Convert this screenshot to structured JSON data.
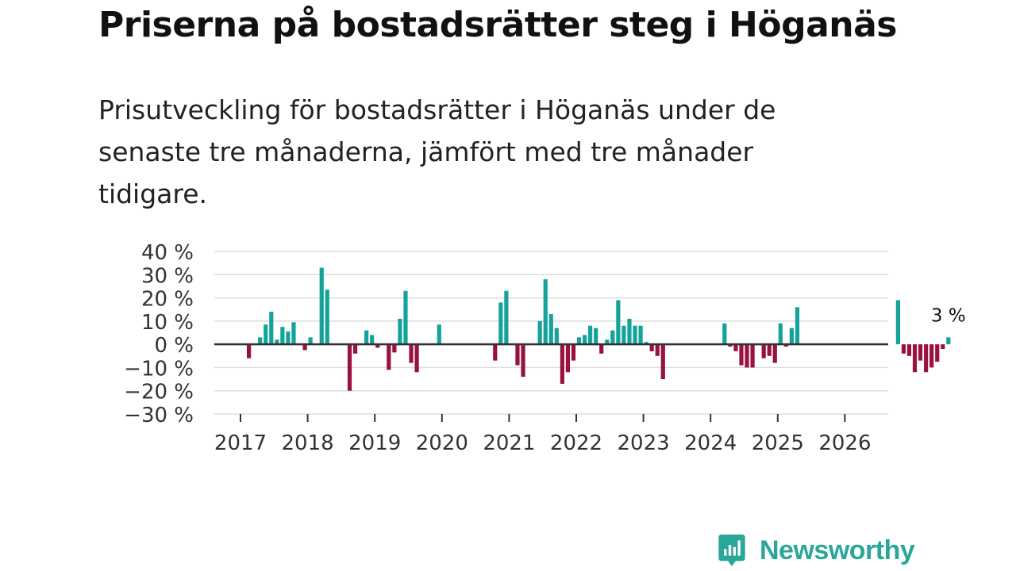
{
  "title": "Priserna på bostadsrätter steg i Höganäs",
  "subtitle": "Prisutveckling för bostadsrätter i Höganäs under de senaste tre månaderna, jämfört med tre månader tidigare.",
  "logo": {
    "text": "Newsworthy",
    "icon": "newsworthy-logo-icon"
  },
  "colors": {
    "positive": "#14a39a",
    "negative": "#99113e",
    "grid": "#dddddd",
    "zero": "#333333"
  },
  "chart_data": {
    "type": "bar",
    "title": "Priserna på bostadsrätter steg i Höganäs",
    "xlabel": "",
    "ylabel": "",
    "ylim": [
      -30,
      40
    ],
    "y_ticks": [
      40,
      30,
      20,
      10,
      0,
      -10,
      -20,
      -30
    ],
    "y_tick_labels": [
      "40 %",
      "30 %",
      "20 %",
      "10 %",
      "0 %",
      "−10 %",
      "−20 %",
      "−30 %"
    ],
    "x_ticks": [
      2017,
      2018,
      2019,
      2020,
      2021,
      2022,
      2023,
      2024,
      2025,
      2026
    ],
    "x_tick_labels": [
      "2017",
      "2018",
      "2019",
      "2020",
      "2021",
      "2022",
      "2023",
      "2024",
      "2025",
      "2026"
    ],
    "x_start": 2017,
    "bars_per_year": 12,
    "unit": "%",
    "annotation": {
      "text": "3 %",
      "target": "last"
    },
    "values": [
      null,
      -6,
      null,
      3,
      8.5,
      14,
      2,
      7.5,
      5.5,
      9.5,
      null,
      -2.5,
      3,
      null,
      33,
      23.5,
      null,
      null,
      null,
      -20,
      -4,
      null,
      6,
      4,
      -1.5,
      null,
      -11,
      -3.5,
      11,
      23,
      -8,
      -12,
      null,
      null,
      null,
      8.5,
      null,
      null,
      null,
      null,
      null,
      null,
      null,
      null,
      null,
      -7,
      18,
      23,
      null,
      -9,
      -14,
      null,
      null,
      10,
      28,
      13,
      7,
      -17,
      -12,
      -7,
      3,
      4,
      8,
      7,
      -4,
      2,
      6,
      19,
      8,
      11,
      8,
      8,
      1,
      -3,
      -5,
      -15,
      null,
      null,
      null,
      null,
      null,
      null,
      null,
      null,
      null,
      null,
      9,
      -1,
      -3,
      -9,
      -10,
      -10,
      null,
      -6,
      -5,
      -8,
      9,
      -1,
      7,
      16,
      null,
      null,
      null,
      null,
      null,
      null,
      null,
      null,
      null,
      null,
      null,
      null,
      null,
      null,
      null,
      null,
      null,
      19,
      -4,
      -5,
      -12,
      -7,
      -12,
      -10,
      -7.5,
      -2,
      3
    ]
  }
}
